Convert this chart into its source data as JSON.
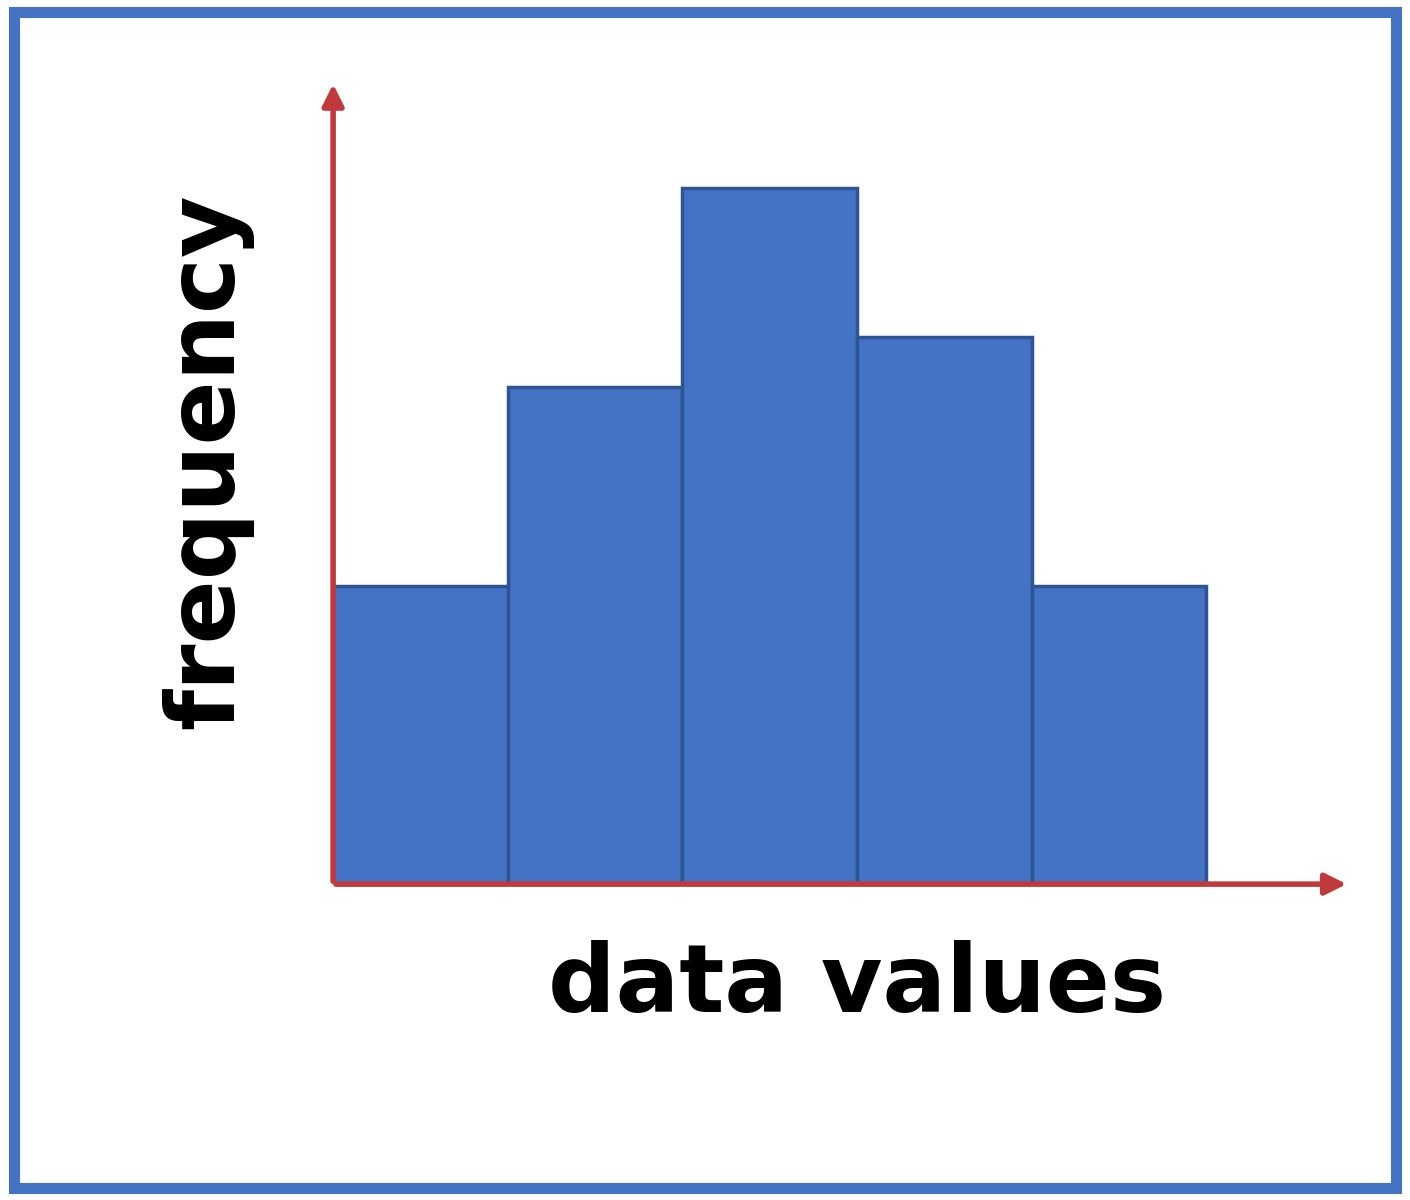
{
  "bar_values": [
    3,
    5,
    7,
    5.5,
    3
  ],
  "bar_color": "#4472C4",
  "bar_edge_color": "#2E5593",
  "bar_width": 1.0,
  "bar_positions": [
    0.5,
    1.5,
    2.5,
    3.5,
    4.5
  ],
  "ylabel": "frequency",
  "xlabel": "data values",
  "label_fontsize": 68,
  "label_fontweight": "black",
  "background_color": "#ffffff",
  "border_color": "#4472C4",
  "border_linewidth": 8,
  "axis_color": "#C0393B",
  "axis_linewidth": 4,
  "ylim": [
    0,
    8.5
  ],
  "xlim": [
    0,
    6.0
  ]
}
